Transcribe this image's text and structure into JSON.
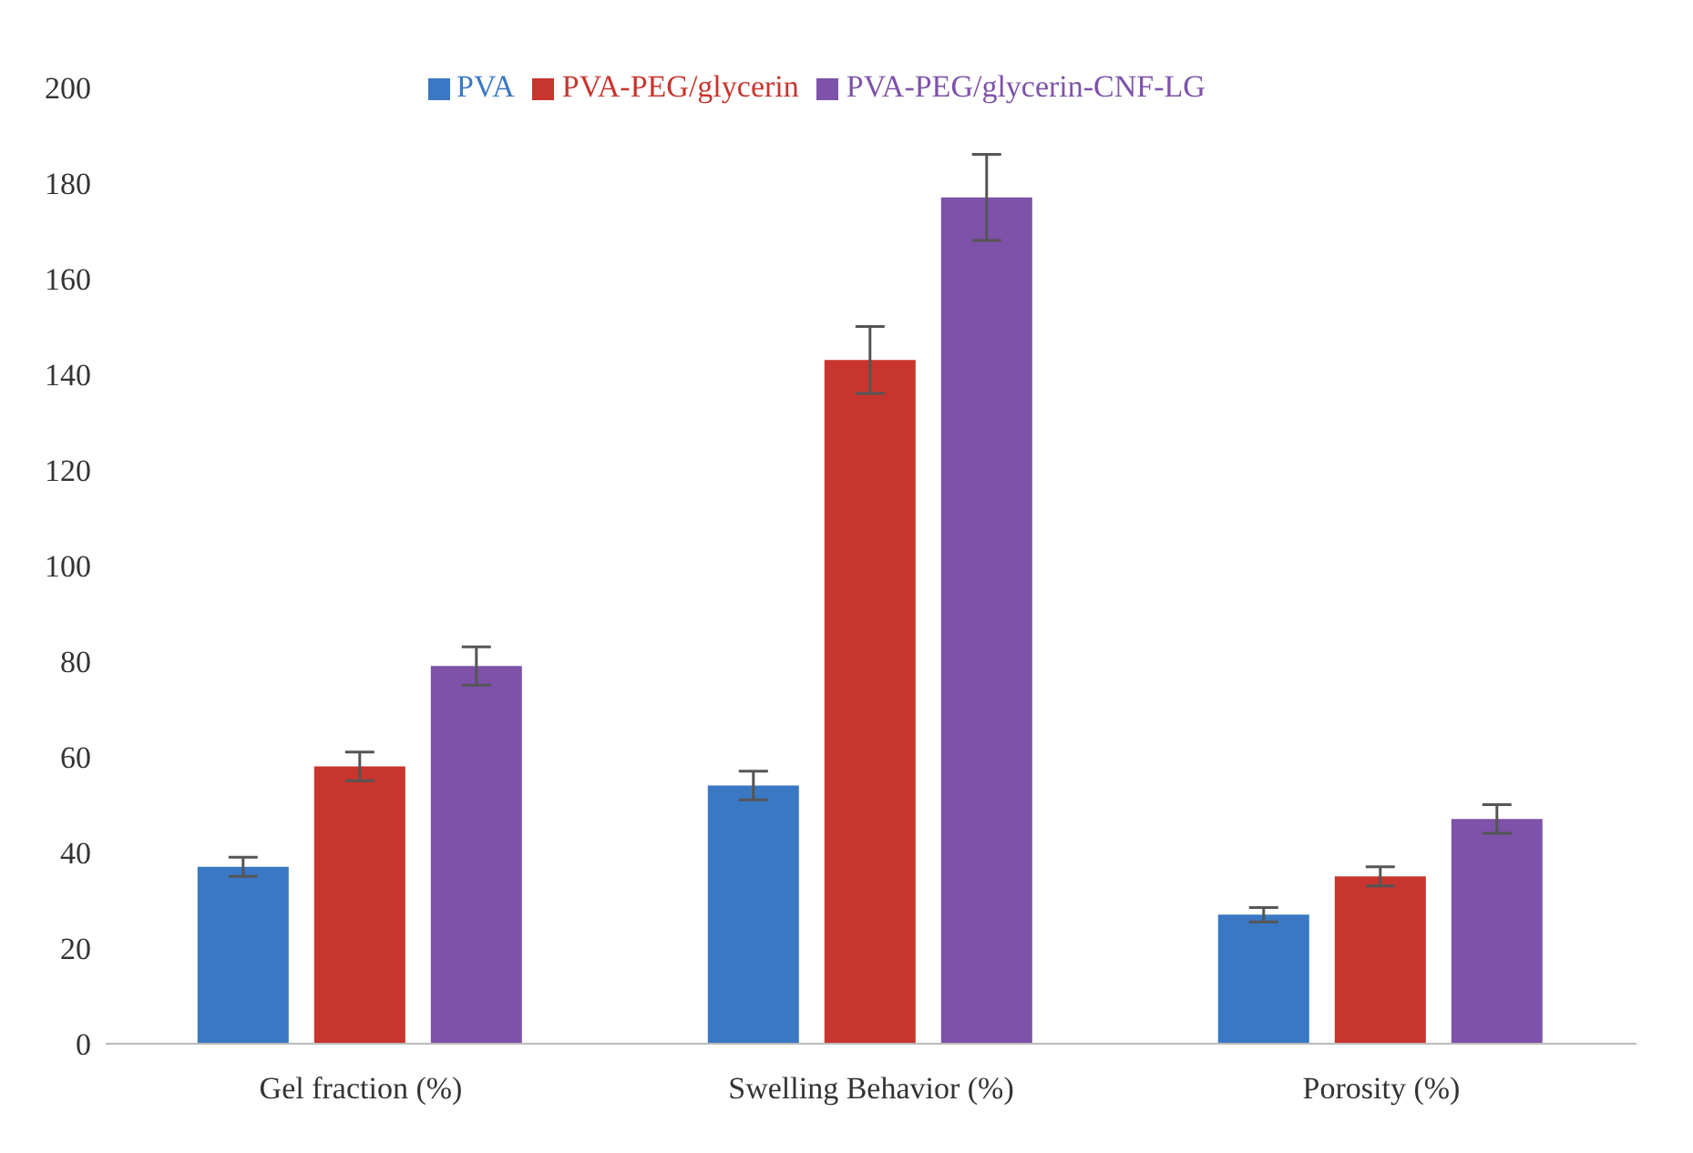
{
  "chart_data": {
    "type": "bar",
    "categories": [
      "Gel fraction (%)",
      "Swelling Behavior (%)",
      "Porosity (%)"
    ],
    "series": [
      {
        "name": "PVA",
        "color": "#3a78c4",
        "values": [
          37,
          54,
          27
        ],
        "errors": [
          2,
          3,
          1.5
        ]
      },
      {
        "name": "PVA-PEG/glycerin",
        "color": "#c8352e",
        "values": [
          58,
          143,
          35
        ],
        "errors": [
          3,
          7,
          2
        ]
      },
      {
        "name": "PVA-PEG/glycerin-CNF-LG",
        "color": "#7d52a8",
        "values": [
          79,
          177,
          47
        ],
        "errors": [
          4,
          9,
          3
        ]
      }
    ],
    "ylim": [
      0,
      200
    ],
    "yticks": [
      0,
      20,
      40,
      60,
      80,
      100,
      120,
      140,
      160,
      180,
      200
    ],
    "grid": false,
    "legend": "top"
  }
}
